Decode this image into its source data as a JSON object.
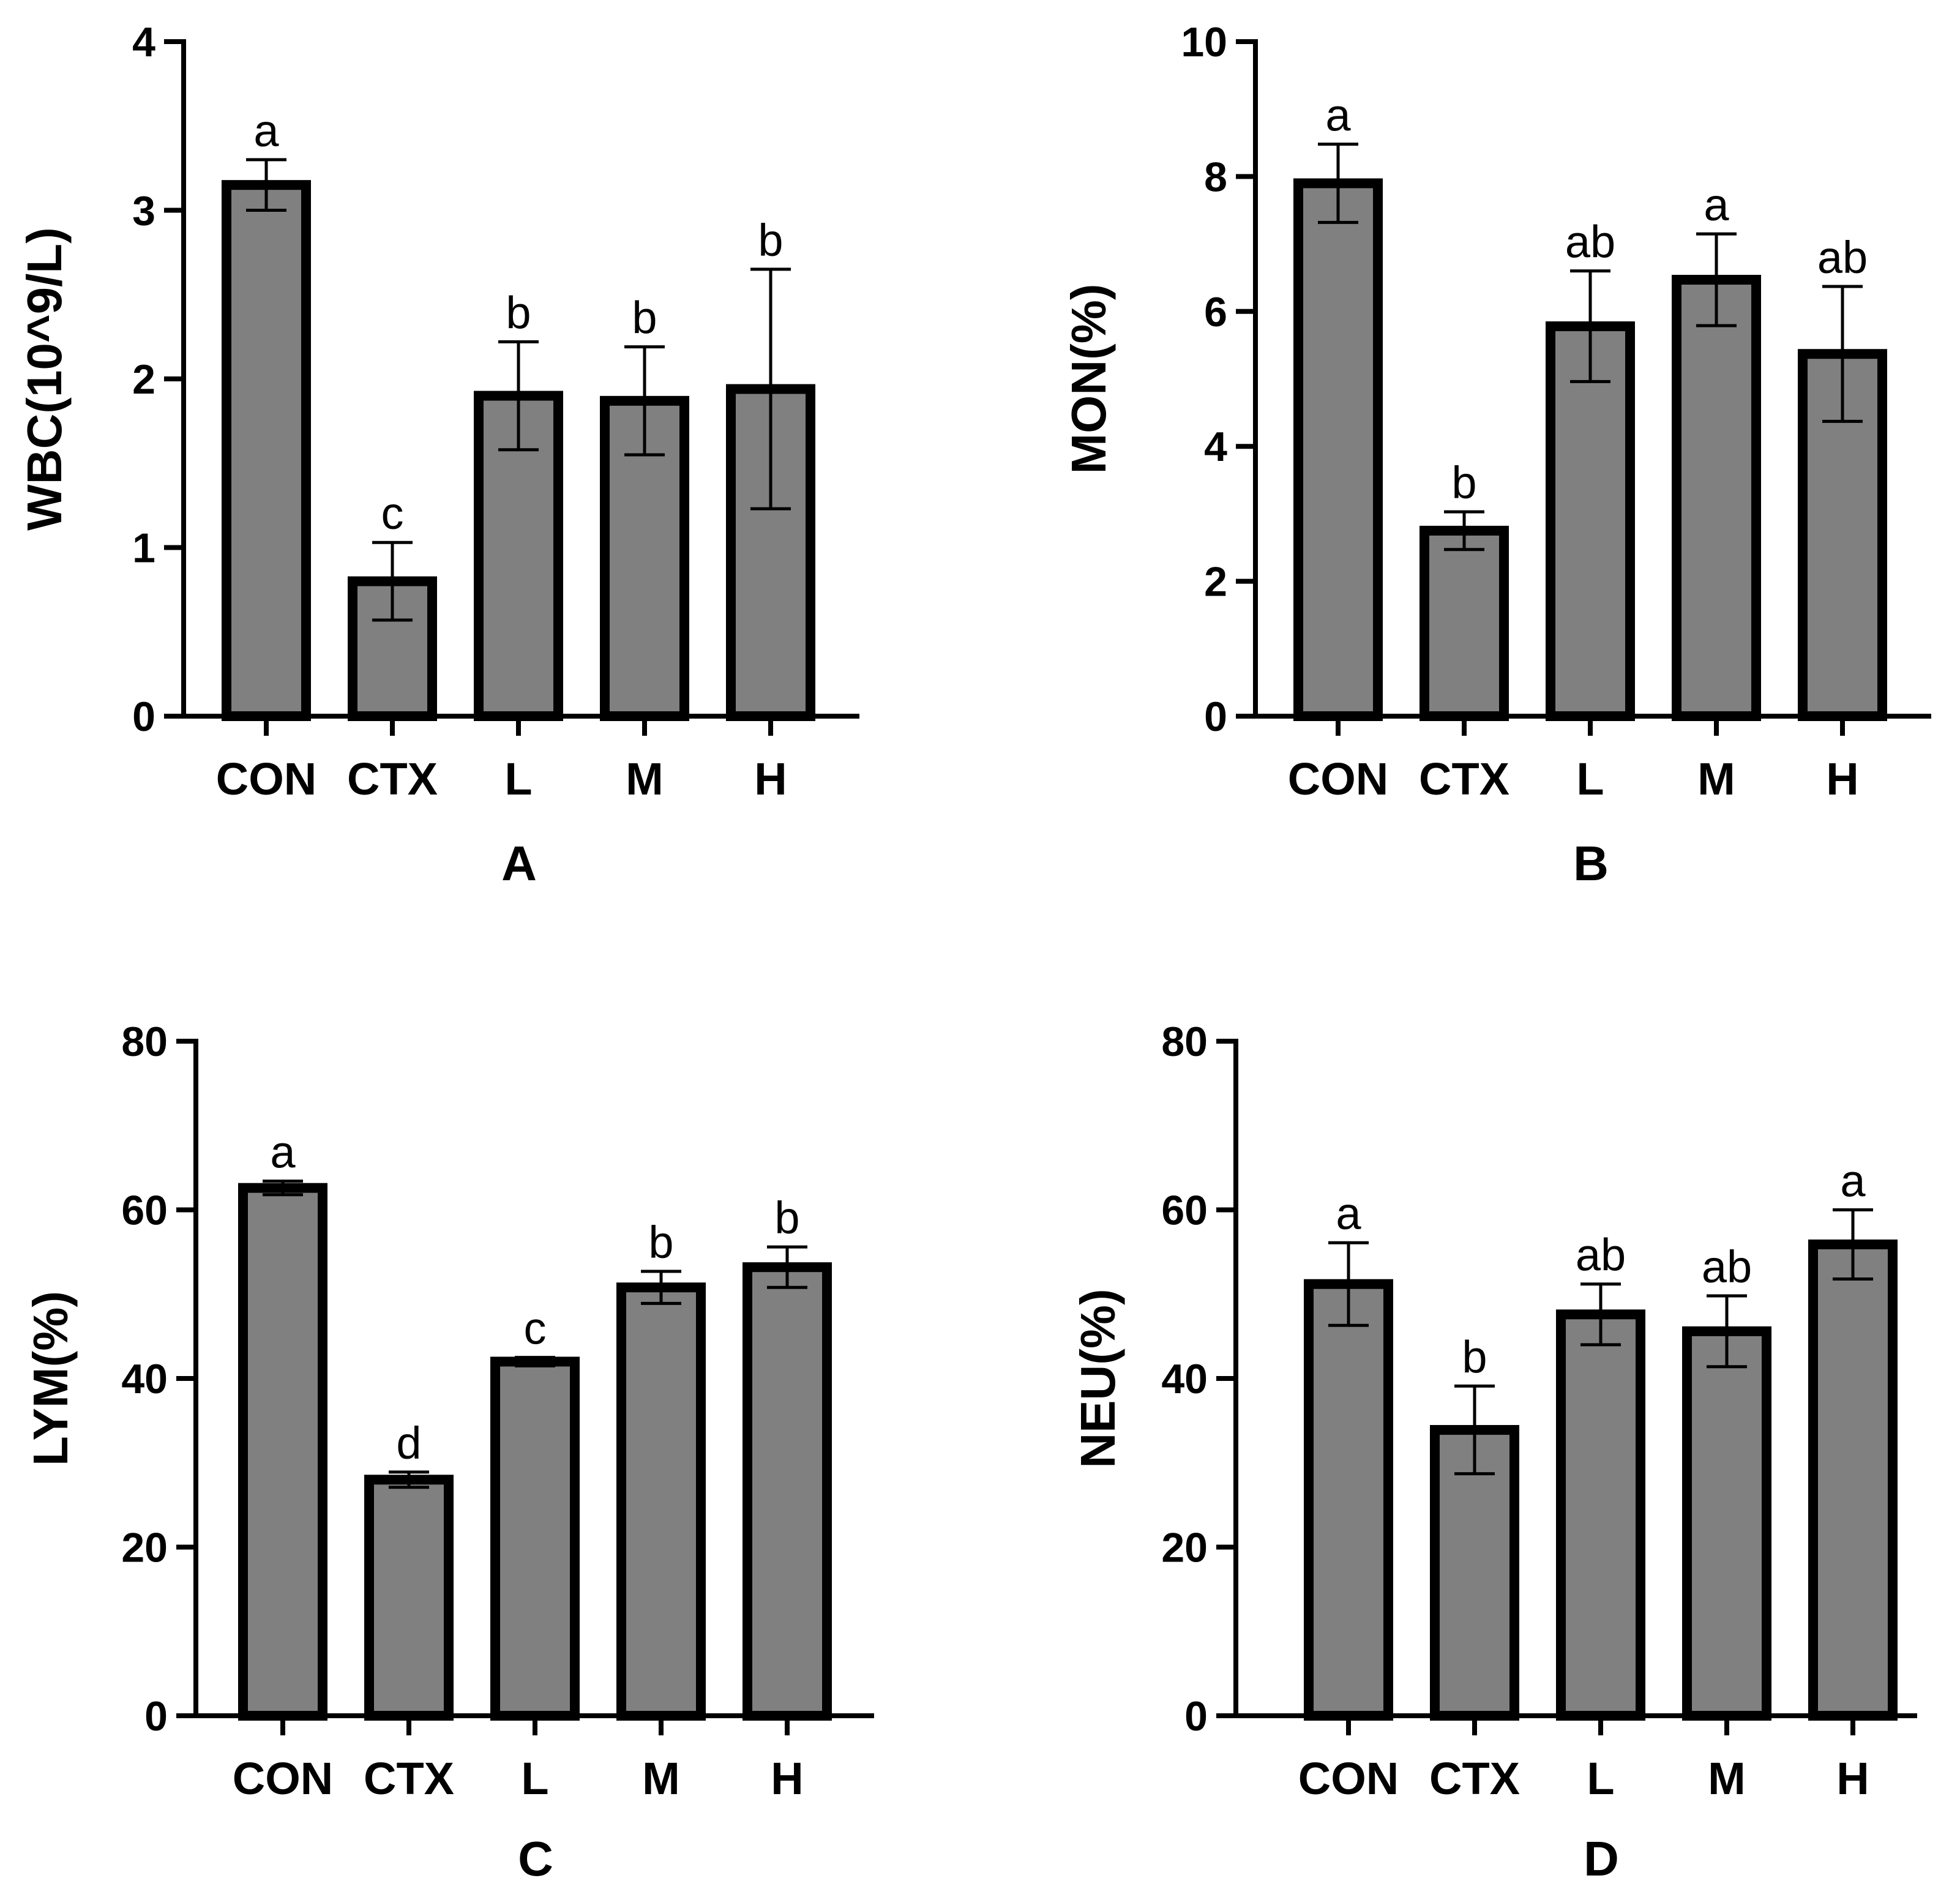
{
  "figure": {
    "categories": [
      "CON",
      "CTX",
      "L",
      "M",
      "H"
    ]
  },
  "chart_data": [
    {
      "type": "bar",
      "panel_label": "A",
      "title": "",
      "xlabel": "",
      "ylabel": "WBC(10^9/L)",
      "ylim": [
        0,
        4
      ],
      "yticks": [
        0,
        1,
        2,
        3,
        4
      ],
      "categories": [
        "CON",
        "CTX",
        "L",
        "M",
        "H"
      ],
      "values": [
        3.15,
        0.8,
        1.9,
        1.87,
        1.94
      ],
      "errors": [
        0.15,
        0.23,
        0.32,
        0.32,
        0.71
      ],
      "significance": [
        "a",
        "c",
        "b",
        "b",
        "b"
      ]
    },
    {
      "type": "bar",
      "panel_label": "B",
      "title": "",
      "xlabel": "",
      "ylabel": "MON(%)",
      "ylim": [
        0,
        10
      ],
      "yticks": [
        0,
        2,
        4,
        6,
        8,
        10
      ],
      "categories": [
        "CON",
        "CTX",
        "L",
        "M",
        "H"
      ],
      "values": [
        7.9,
        2.75,
        5.78,
        6.47,
        5.37
      ],
      "errors": [
        0.58,
        0.28,
        0.82,
        0.68,
        1.0
      ],
      "significance": [
        "a",
        "b",
        "ab",
        "a",
        "ab"
      ]
    },
    {
      "type": "bar",
      "panel_label": "C",
      "title": "",
      "xlabel": "",
      "ylabel": "LYM(%)",
      "ylim": [
        0,
        80
      ],
      "yticks": [
        0,
        20,
        40,
        60,
        80
      ],
      "categories": [
        "CON",
        "CTX",
        "L",
        "M",
        "H"
      ],
      "values": [
        62.6,
        28.0,
        42.0,
        50.8,
        53.2
      ],
      "errors": [
        0.8,
        0.9,
        0.5,
        1.9,
        2.4
      ],
      "significance": [
        "a",
        "d",
        "c",
        "b",
        "b"
      ]
    },
    {
      "type": "bar",
      "panel_label": "D",
      "title": "",
      "xlabel": "",
      "ylabel": "NEU(%)",
      "ylim": [
        0,
        80
      ],
      "yticks": [
        0,
        20,
        40,
        60,
        80
      ],
      "categories": [
        "CON",
        "CTX",
        "L",
        "M",
        "H"
      ],
      "values": [
        51.2,
        33.9,
        47.6,
        45.6,
        55.9
      ],
      "errors": [
        4.9,
        5.2,
        3.6,
        4.2,
        4.1
      ],
      "significance": [
        "a",
        "b",
        "ab",
        "ab",
        "a"
      ]
    }
  ]
}
